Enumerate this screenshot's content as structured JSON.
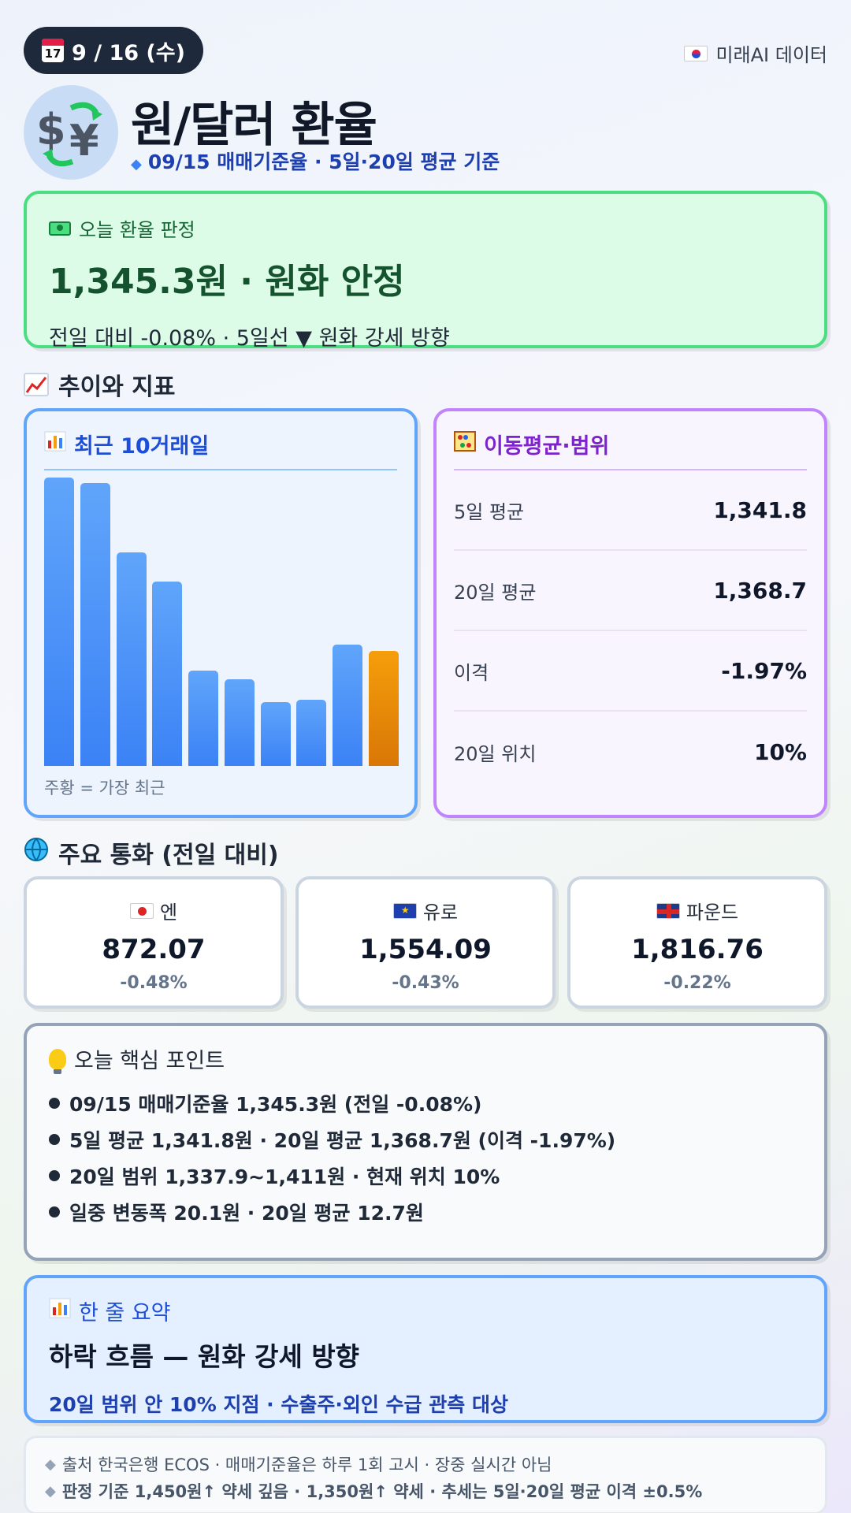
{
  "header": {
    "date": "9 / 16 (수)",
    "calendar_icon_text": "17",
    "brand": "미래AI 데이터",
    "title": "원/달러 환율",
    "subtitle": "09/15 매매기준율 · 5일·20일 평균 기준"
  },
  "verdict": {
    "label": "오늘 환율 판정",
    "main": "1,345.3원 · 원화 안정",
    "sub": "전일 대비 -0.08% · 5일선 ▼ 원화 강세 방향"
  },
  "section_trend": "추이와 지표",
  "trend": {
    "title": "최근 10거래일",
    "note": "주황 = 가장 최근",
    "bar_levels": [
      1.0,
      0.982,
      0.74,
      0.64,
      0.33,
      0.3,
      0.22,
      0.23,
      0.42,
      0.4
    ]
  },
  "ma": {
    "title": "이동평균·범위",
    "rows": [
      {
        "label": "5일 평균",
        "value": "1,341.8"
      },
      {
        "label": "20일 평균",
        "value": "1,368.7"
      },
      {
        "label": "이격",
        "value": "-1.97%"
      },
      {
        "label": "20일 위치",
        "value": "10%"
      }
    ]
  },
  "section_currencies": "주요 통화 (전일 대비)",
  "currencies": [
    {
      "name": "엔",
      "value": "872.07",
      "change": "-0.48%"
    },
    {
      "name": "유로",
      "value": "1,554.09",
      "change": "-0.43%"
    },
    {
      "name": "파운드",
      "value": "1,816.76",
      "change": "-0.22%"
    }
  ],
  "points": {
    "title": "오늘 핵심 포인트",
    "items": [
      "09/15 매매기준율 1,345.3원 (전일 -0.08%)",
      "5일 평균 1,341.8원 · 20일 평균 1,368.7원 (이격 -1.97%)",
      "20일 범위 1,337.9~1,411원 · 현재 위치 10%",
      "일중 변동폭 20.1원 · 20일 평균 12.7원"
    ]
  },
  "summary": {
    "title": "한 줄 요약",
    "main": "하락 흐름 — 원화 강세 방향",
    "sub": "20일 범위 안 10% 지점 · 수출주·외인 수급 관측 대상"
  },
  "source": {
    "line1": "출처 한국은행 ECOS · 매매기준율은 하루 1회 고시 · 장중 실시간 아님",
    "line2": "판정 기준 1,450원↑ 약세 깊음 · 1,350원↑ 약세 · 추세는 5일·20일 평균 이격 ±0.5%"
  },
  "colors": {
    "accent_green": "#4ade80",
    "accent_blue": "#60a5fa",
    "accent_purple": "#c084fc",
    "latest_bar": "#f59e0b"
  },
  "icons": {
    "calendar": "calendar-icon",
    "exchange": "currency-exchange-icon",
    "money": "money-icon",
    "trend": "chart-up-icon",
    "bar_chart": "bar-chart-icon",
    "abacus": "abacus-icon",
    "globe": "globe-icon",
    "bulb": "lightbulb-icon"
  }
}
